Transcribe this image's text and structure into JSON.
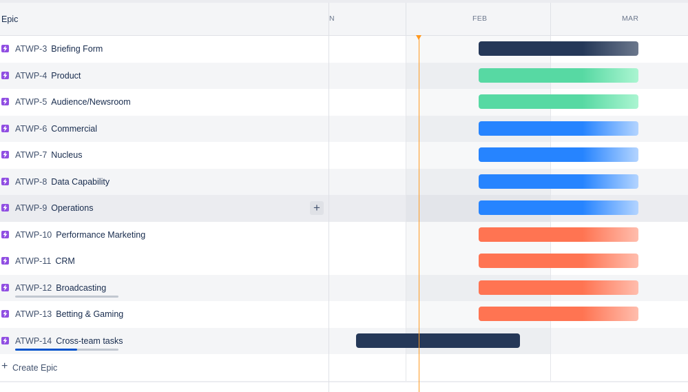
{
  "header": {
    "epic_label": "Epic",
    "months": [
      "N",
      "FEB",
      "MAR"
    ]
  },
  "epics": [
    {
      "key": "ATWP-3",
      "summary": "Briefing Form",
      "color": "#253858",
      "fade": "#6b778c"
    },
    {
      "key": "ATWP-4",
      "summary": "Product",
      "color": "#57d9a3",
      "fade": "#abf5d1"
    },
    {
      "key": "ATWP-5",
      "summary": "Audience/Newsroom",
      "color": "#57d9a3",
      "fade": "#abf5d1"
    },
    {
      "key": "ATWP-6",
      "summary": "Commercial",
      "color": "#2684ff",
      "fade": "#b3d4ff"
    },
    {
      "key": "ATWP-7",
      "summary": "Nucleus",
      "color": "#2684ff",
      "fade": "#b3d4ff"
    },
    {
      "key": "ATWP-8",
      "summary": "Data Capability",
      "color": "#2684ff",
      "fade": "#b3d4ff"
    },
    {
      "key": "ATWP-9",
      "summary": "Operations",
      "color": "#2684ff",
      "fade": "#b3d4ff"
    },
    {
      "key": "ATWP-10",
      "summary": "Performance Marketing",
      "color": "#ff7452",
      "fade": "#ffbdad"
    },
    {
      "key": "ATWP-11",
      "summary": "CRM",
      "color": "#ff7452",
      "fade": "#ffbdad"
    },
    {
      "key": "ATWP-12",
      "summary": "Broadcasting",
      "color": "#ff7452",
      "fade": "#ffbdad",
      "progress": 0
    },
    {
      "key": "ATWP-13",
      "summary": "Betting & Gaming",
      "color": "#ff7452",
      "fade": "#ffbdad"
    },
    {
      "key": "ATWP-14",
      "summary": "Cross-team tasks",
      "color": "#253858",
      "fade": "#253858",
      "progress": 0.6
    }
  ],
  "create": {
    "label": "Create Epic"
  },
  "colors": {
    "today": "#ff991f",
    "epic_icon": "#904ee2",
    "progress": "#0052cc"
  }
}
